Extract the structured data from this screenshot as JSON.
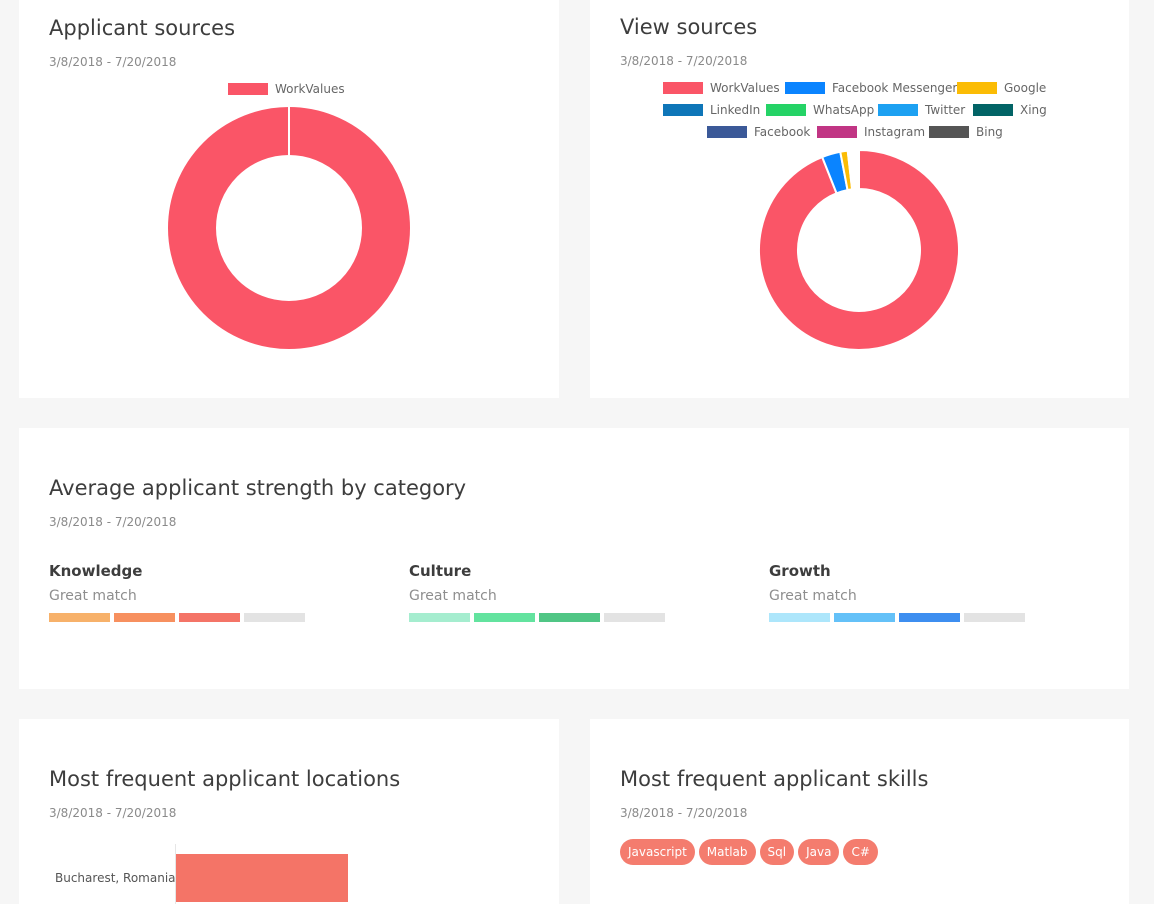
{
  "date_range": "3/8/2018 - 7/20/2018",
  "applicant_sources": {
    "title": "Applicant sources",
    "date": "3/8/2018 - 7/20/2018",
    "legend": [
      {
        "label": "WorkValues",
        "color": "#fa5567"
      }
    ],
    "chart_data": {
      "type": "pie",
      "donut": true,
      "title": "Applicant sources",
      "categories": [
        "WorkValues"
      ],
      "values": [
        100
      ],
      "colors": [
        "#fa5567"
      ]
    }
  },
  "view_sources": {
    "title": "View sources",
    "date": "3/8/2018 - 7/20/2018",
    "legend": [
      {
        "label": "WorkValues",
        "color": "#fa5567"
      },
      {
        "label": "Facebook Messenger",
        "color": "#0a84ff"
      },
      {
        "label": "Google",
        "color": "#fbbc05"
      },
      {
        "label": "LinkedIn",
        "color": "#0e76b8"
      },
      {
        "label": "WhatsApp",
        "color": "#25d366"
      },
      {
        "label": "Twitter",
        "color": "#1da1f2"
      },
      {
        "label": "Xing",
        "color": "#026466"
      },
      {
        "label": "Facebook",
        "color": "#3b5998"
      },
      {
        "label": "Instagram",
        "color": "#c13584"
      },
      {
        "label": "Bing",
        "color": "#555555"
      }
    ],
    "chart_data": {
      "type": "pie",
      "donut": true,
      "title": "View sources",
      "categories": [
        "WorkValues",
        "Facebook Messenger",
        "Google",
        "LinkedIn",
        "WhatsApp",
        "Twitter",
        "Xing",
        "Facebook",
        "Instagram",
        "Bing"
      ],
      "values": [
        94,
        3,
        1.2,
        0.3,
        0.3,
        0.3,
        0.2,
        0.3,
        0.2,
        0.2
      ],
      "colors": [
        "#fa5567",
        "#0a84ff",
        "#fbbc05",
        "#0e76b8",
        "#25d366",
        "#1da1f2",
        "#026466",
        "#3b5998",
        "#c13584",
        "#555555"
      ]
    }
  },
  "strength": {
    "title": "Average applicant strength by category",
    "date": "3/8/2018 - 7/20/2018",
    "categories": [
      {
        "name": "Knowledge",
        "match": "Great match",
        "level": 3,
        "max": 4,
        "colors": [
          "#f7b16a",
          "#f7905f",
          "#f47467",
          "#e3e3e3"
        ]
      },
      {
        "name": "Culture",
        "match": "Great match",
        "level": 3,
        "max": 4,
        "colors": [
          "#a5edcf",
          "#63e39f",
          "#50c685",
          "#e3e3e3"
        ]
      },
      {
        "name": "Growth",
        "match": "Great match",
        "level": 3,
        "max": 4,
        "colors": [
          "#ade6fb",
          "#64c1f8",
          "#3d8ef0",
          "#e3e3e3"
        ]
      }
    ]
  },
  "locations": {
    "title": "Most frequent applicant locations",
    "date": "3/8/2018 - 7/20/2018",
    "chart_data": {
      "type": "bar",
      "orientation": "horizontal",
      "title": "Most frequent applicant locations",
      "categories": [
        "Bucharest, Romania"
      ],
      "values": [
        1
      ],
      "color": "#f47467"
    }
  },
  "skills": {
    "title": "Most frequent applicant skills",
    "date": "3/8/2018 - 7/20/2018",
    "tags": [
      "Javascript",
      "Matlab",
      "Sql",
      "Java",
      "C#"
    ]
  }
}
